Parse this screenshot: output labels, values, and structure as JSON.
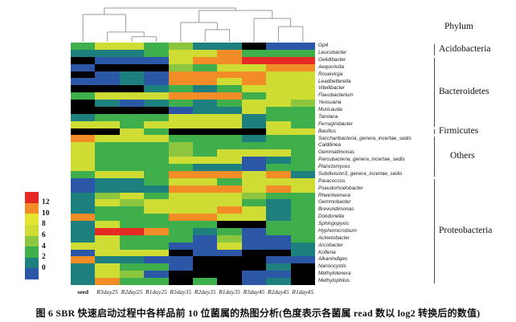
{
  "caption": "图 6  SBR 快速启动过程中各样品前 10 位菌属的热图分析(色度表示各菌属 read 数以 log2 转换后的数值)",
  "phylum_header": "Phylum",
  "chart_data": {
    "type": "heatmap",
    "value_meaning": "log2-transformed read counts per genus per sample",
    "columns": [
      "seed",
      "R3day25",
      "R2day25",
      "R1day25",
      "R3day35",
      "R2day35",
      "R1day35",
      "R3day45",
      "R2day45",
      "R1day45"
    ],
    "rows": [
      "Gp4",
      "Leucobacter",
      "Gelidibacter",
      "Aequorivita",
      "Roseivirga",
      "Leadbetterella",
      "Vitellibacter",
      "Flavobacterium",
      "Yeosuana",
      "Muricauda",
      "Tamlana",
      "Ferruginibacter",
      "Bacillus",
      "Saccharibacteria_genera_incertae_sedis",
      "Caldilinea",
      "Gemmatimonas",
      "Parcubacteria_genera_incertae_sedis",
      "Planctomyces",
      "Subdivision3_genera_incertae_sedis",
      "Paracoccus",
      "Pseudorhodobacter",
      "Rheinheimera",
      "Gemmobacter",
      "Brevundimonas",
      "Dokdonella",
      "Sphingopyxis",
      "Hyphomicrobium",
      "Acinetobacter",
      "Arcobacter",
      "Kofleria",
      "Alkanindiges",
      "Nannocystis",
      "Methylotenera",
      "Methylophilus"
    ],
    "palette": {
      "K": "#000000",
      "B": "#2B57A6",
      "T": "#1E7F7F",
      "G": "#3FAF4B",
      "L": "#8CC63F",
      "Y": "#CEDC33",
      "O": "#F28C26",
      "R": "#E52A26"
    },
    "cells": [
      [
        "G",
        "Y",
        "Y",
        "G",
        "L",
        "T",
        "T",
        "K",
        "B",
        "B"
      ],
      [
        "T",
        "T",
        "T",
        "G",
        "Y",
        "Y",
        "O",
        "G",
        "G",
        "G"
      ],
      [
        "K",
        "B",
        "B",
        "B",
        "Y",
        "O",
        "O",
        "R",
        "R",
        "R"
      ],
      [
        "B",
        "K",
        "K",
        "K",
        "L",
        "G",
        "Y",
        "Y",
        "O",
        "O"
      ],
      [
        "K",
        "B",
        "T",
        "B",
        "O",
        "O",
        "O",
        "O",
        "Y",
        "Y"
      ],
      [
        "B",
        "B",
        "T",
        "B",
        "O",
        "O",
        "Y",
        "O",
        "Y",
        "Y"
      ],
      [
        "K",
        "K",
        "K",
        "T",
        "G",
        "T",
        "G",
        "Y",
        "Y",
        "Y"
      ],
      [
        "G",
        "Y",
        "Y",
        "Y",
        "O",
        "O",
        "O",
        "G",
        "Y",
        "Y"
      ],
      [
        "K",
        "T",
        "B",
        "T",
        "G",
        "T",
        "G",
        "Y",
        "Y",
        "L"
      ],
      [
        "K",
        "K",
        "K",
        "K",
        "B",
        "T",
        "T",
        "Y",
        "G",
        "G"
      ],
      [
        "T",
        "G",
        "G",
        "G",
        "Y",
        "Y",
        "Y",
        "T",
        "G",
        "G"
      ],
      [
        "Y",
        "Y",
        "G",
        "Y",
        "Y",
        "Y",
        "Y",
        "T",
        "Y",
        "G"
      ],
      [
        "K",
        "K",
        "Y",
        "G",
        "K",
        "K",
        "K",
        "K",
        "Y",
        "Y"
      ],
      [
        "O",
        "Y",
        "Y",
        "Y",
        "G",
        "G",
        "G",
        "T",
        "G",
        "G"
      ],
      [
        "Y",
        "G",
        "G",
        "G",
        "L",
        "G",
        "G",
        "G",
        "G",
        "G"
      ],
      [
        "Y",
        "G",
        "G",
        "G",
        "L",
        "G",
        "Y",
        "Y",
        "Y",
        "G"
      ],
      [
        "Y",
        "G",
        "G",
        "G",
        "Y",
        "Y",
        "Y",
        "B",
        "T",
        "G"
      ],
      [
        "Y",
        "G",
        "G",
        "G",
        "G",
        "T",
        "T",
        "B",
        "G",
        "G"
      ],
      [
        "G",
        "Y",
        "Y",
        "G",
        "O",
        "O",
        "O",
        "Y",
        "O",
        "T"
      ],
      [
        "B",
        "T",
        "T",
        "G",
        "Y",
        "Y",
        "G",
        "Y",
        "Y",
        "Y"
      ],
      [
        "B",
        "T",
        "T",
        "T",
        "O",
        "O",
        "O",
        "Y",
        "O",
        "Y"
      ],
      [
        "T",
        "L",
        "Y",
        "G",
        "Y",
        "Y",
        "Y",
        "L",
        "G",
        "G"
      ],
      [
        "T",
        "Y",
        "L",
        "Y",
        "Y",
        "Y",
        "Y",
        "G",
        "T",
        "G"
      ],
      [
        "T",
        "G",
        "G",
        "Y",
        "Y",
        "Y",
        "O",
        "Y",
        "T",
        "G"
      ],
      [
        "O",
        "G",
        "G",
        "G",
        "O",
        "O",
        "Y",
        "Y",
        "T",
        "G"
      ],
      [
        "T",
        "Y",
        "G",
        "G",
        "G",
        "G",
        "K",
        "K",
        "G",
        "G"
      ],
      [
        "T",
        "R",
        "R",
        "O",
        "G",
        "T",
        "G",
        "B",
        "G",
        "G"
      ],
      [
        "T",
        "Y",
        "G",
        "G",
        "G",
        "B",
        "L",
        "B",
        "B",
        "G"
      ],
      [
        "Y",
        "Y",
        "G",
        "G",
        "B",
        "B",
        "Y",
        "B",
        "B",
        "T"
      ],
      [
        "B",
        "Y",
        "Y",
        "Y",
        "K",
        "B",
        "B",
        "K",
        "K",
        "T"
      ],
      [
        "O",
        "T",
        "T",
        "B",
        "B",
        "K",
        "K",
        "K",
        "B",
        "B"
      ],
      [
        "T",
        "Y",
        "G",
        "G",
        "B",
        "K",
        "K",
        "K",
        "T",
        "K"
      ],
      [
        "T",
        "Y",
        "L",
        "B",
        "K",
        "K",
        "K",
        "B",
        "B",
        "K"
      ],
      [
        "T",
        "O",
        "G",
        "G",
        "K",
        "G",
        "K",
        "B",
        "T",
        "K"
      ]
    ],
    "phylum_groups": [
      {
        "label": "Acidobacteria",
        "row_start": 0,
        "row_end": 1
      },
      {
        "label": "Bacteroidetes",
        "row_start": 2,
        "row_end": 11
      },
      {
        "label": "Firmicutes",
        "row_start": 12,
        "row_end": 12
      },
      {
        "label": "Others",
        "row_start": 13,
        "row_end": 18
      },
      {
        "label": "Proteobacteria",
        "row_start": 19,
        "row_end": 33
      }
    ],
    "legend": {
      "ticks": [
        12,
        10,
        8,
        6,
        4,
        2,
        0
      ],
      "segment_colors_top_to_bottom": [
        "#E52A26",
        "#F28C26",
        "#E5E42F",
        "#CEDC33",
        "#8CC63F",
        "#3FAF4B",
        "#1E7F7F",
        "#2B57A6"
      ]
    },
    "dendrogram": {
      "h": 0.0,
      "children": [
        {
          "h": 0.19,
          "children": [
            {
              "leaf": 0
            },
            {
              "h": 0.71,
              "children": [
                {
                  "leaf": 1
                },
                {
                  "h": 0.85,
                  "children": [
                    {
                      "leaf": 2
                    },
                    {
                      "leaf": 3
                    }
                  ]
                }
              ]
            }
          ]
        },
        {
          "h": 0.07,
          "children": [
            {
              "h": 0.43,
              "children": [
                {
                  "leaf": 4
                },
                {
                  "h": 0.64,
                  "children": [
                    {
                      "leaf": 5
                    },
                    {
                      "leaf": 6
                    }
                  ]
                }
              ]
            },
            {
              "h": 0.31,
              "children": [
                {
                  "leaf": 7
                },
                {
                  "h": 0.55,
                  "children": [
                    {
                      "leaf": 8
                    },
                    {
                      "leaf": 9
                    }
                  ]
                }
              ]
            }
          ]
        }
      ]
    }
  }
}
